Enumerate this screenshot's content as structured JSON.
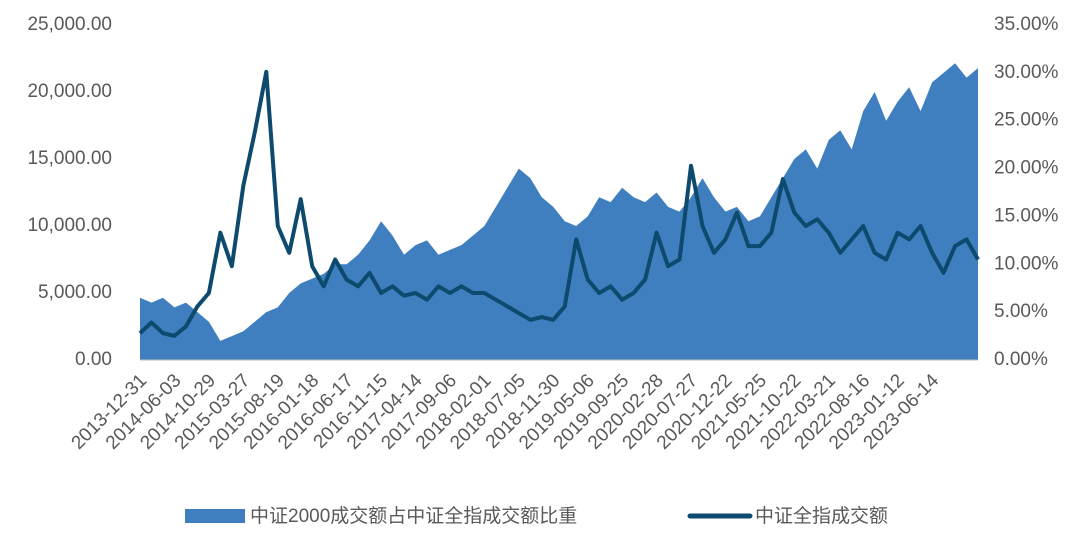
{
  "chart_data": {
    "type": "area-line",
    "categories": [
      "2013-12-31",
      null,
      null,
      "2014-06-03",
      null,
      null,
      "2014-10-29",
      null,
      null,
      "2015-03-27",
      null,
      null,
      "2015-08-19",
      null,
      null,
      "2016-01-18",
      null,
      null,
      "2016-06-17",
      null,
      null,
      "2016-11-15",
      null,
      null,
      "2017-04-14",
      null,
      null,
      "2017-09-06",
      null,
      null,
      "2018-02-01",
      null,
      null,
      "2018-07-05",
      null,
      null,
      "2018-11-30",
      null,
      null,
      "2019-05-06",
      null,
      null,
      "2019-09-25",
      null,
      null,
      "2020-02-28",
      null,
      null,
      "2020-07-27",
      null,
      null,
      "2020-12-22",
      null,
      null,
      "2021-05-25",
      null,
      null,
      "2021-10-22",
      null,
      null,
      "2022-03-21",
      null,
      null,
      "2022-08-16",
      null,
      null,
      "2023-01-12",
      null,
      null,
      "2023-06-14",
      null,
      null,
      null,
      null
    ],
    "series": [
      {
        "name": "中证2000成交额占中证全指成交额比重",
        "color": "#3f7fbf",
        "axis": "y2",
        "values": [
          6.5,
          6.0,
          6.5,
          5.5,
          6.0,
          5.0,
          4.0,
          2.0,
          2.5,
          3.0,
          4.0,
          5.0,
          5.5,
          7.0,
          8.0,
          8.5,
          9.0,
          10.0,
          10.0,
          11.0,
          12.5,
          14.5,
          13.0,
          11.0,
          12.0,
          12.5,
          11.0,
          11.5,
          12.0,
          13.0,
          14.0,
          16.0,
          18.0,
          20.0,
          19.0,
          17.0,
          16.0,
          14.5,
          14.0,
          15.0,
          17.0,
          16.5,
          18.0,
          17.0,
          16.5,
          17.5,
          16.0,
          15.5,
          17.0,
          19.0,
          17.0,
          15.5,
          16.0,
          14.5,
          15.0,
          17.0,
          19.0,
          21.0,
          22.0,
          20.0,
          23.0,
          24.0,
          22.0,
          26.0,
          28.0,
          25.0,
          27.0,
          28.5,
          26.0,
          29.0,
          30.0,
          31.0,
          29.5,
          30.5
        ]
      },
      {
        "name": "中证全指成交额",
        "color": "#0d4a6e",
        "values": [
          2000,
          2800,
          2000,
          1800,
          2500,
          4000,
          5000,
          9500,
          7000,
          13000,
          17000,
          21500,
          10000,
          8000,
          12000,
          7000,
          5500,
          7500,
          6000,
          5500,
          6500,
          5000,
          5500,
          4800,
          5000,
          4500,
          5500,
          5000,
          5500,
          5000,
          5000,
          4500,
          4000,
          3500,
          3000,
          3200,
          3000,
          4000,
          9000,
          6000,
          5000,
          5500,
          4500,
          5000,
          6000,
          9500,
          7000,
          7500,
          14500,
          10000,
          8000,
          9000,
          11000,
          8500,
          8500,
          9500,
          13500,
          11000,
          10000,
          10500,
          9500,
          8000,
          9000,
          10000,
          8000,
          7500,
          9500,
          9000,
          10000,
          8000,
          6500,
          8500,
          9000,
          7500
        ]
      }
    ],
    "ylim": [
      0,
      25000
    ],
    "yticks": [
      {
        "value": 0,
        "label": "0.00"
      },
      {
        "value": 5000,
        "label": "5,000.00"
      },
      {
        "value": 10000,
        "label": "10,000.00"
      },
      {
        "value": 15000,
        "label": "15,000.00"
      },
      {
        "value": 20000,
        "label": "20,000.00"
      },
      {
        "value": 25000,
        "label": "25,000.00"
      }
    ],
    "y2lim": [
      0,
      35
    ],
    "y2ticks": [
      {
        "value": 0,
        "label": "0.00%"
      },
      {
        "value": 5,
        "label": "5.00%"
      },
      {
        "value": 10,
        "label": "10.00%"
      },
      {
        "value": 15,
        "label": "15.00%"
      },
      {
        "value": 20,
        "label": "20.00%"
      },
      {
        "value": 25,
        "label": "25.00%"
      },
      {
        "value": 30,
        "label": "30.00%"
      },
      {
        "value": 35,
        "label": "35.00%"
      }
    ],
    "legend": "bottom"
  }
}
